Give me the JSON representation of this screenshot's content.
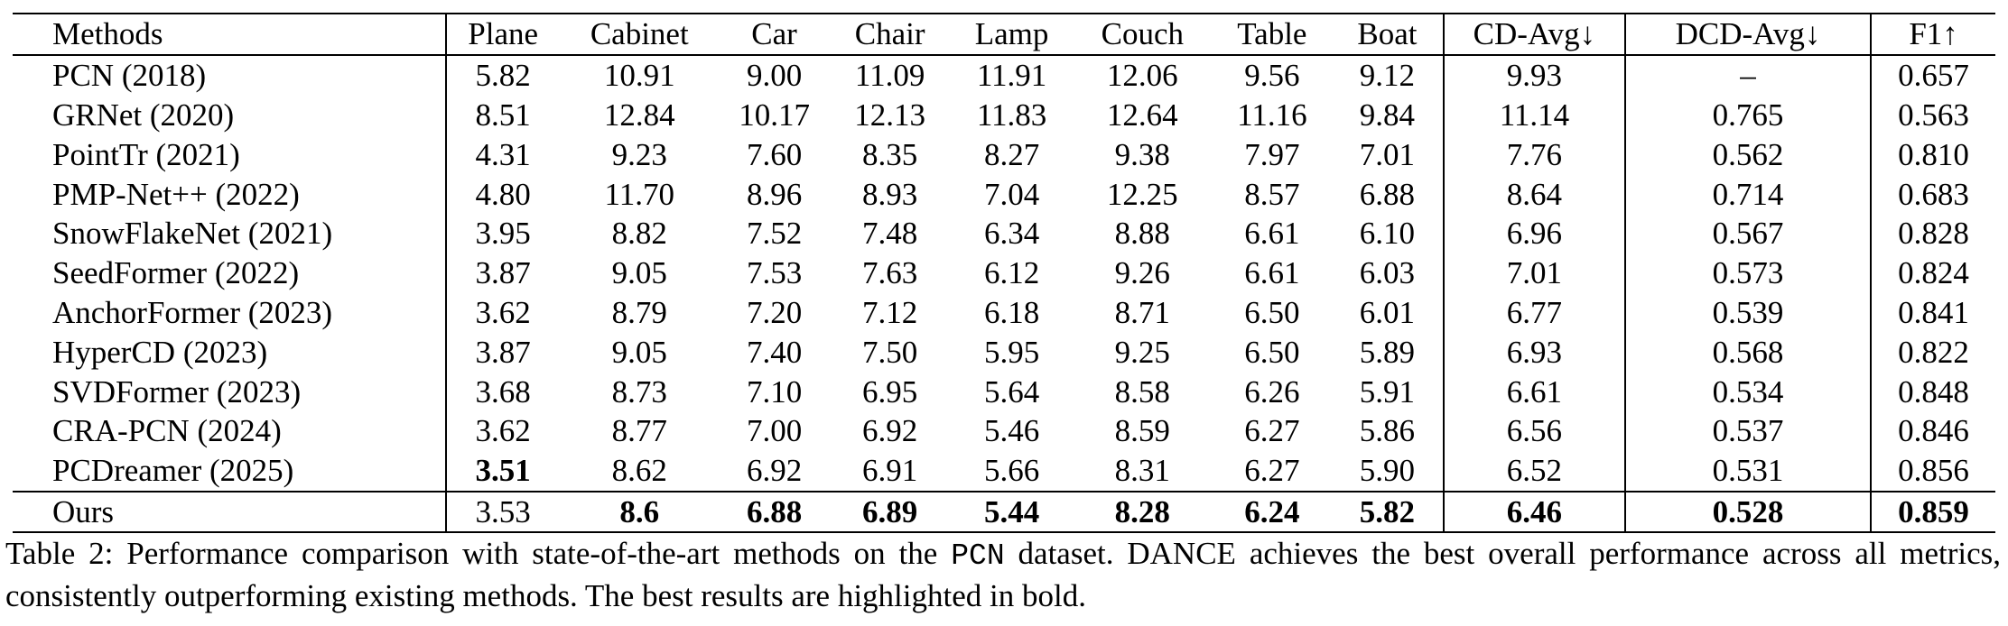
{
  "table": {
    "headers": [
      "Methods",
      "Plane",
      "Cabinet",
      "Car",
      "Chair",
      "Lamp",
      "Couch",
      "Table",
      "Boat",
      "CD-Avg↓",
      "DCD-Avg↓",
      "F1↑"
    ],
    "rows": [
      [
        "PCN (2018)",
        "5.82",
        "10.91",
        "9.00",
        "11.09",
        "11.91",
        "12.06",
        "9.56",
        "9.12",
        "9.93",
        "–",
        "0.657"
      ],
      [
        "GRNet (2020)",
        "8.51",
        "12.84",
        "10.17",
        "12.13",
        "11.83",
        "12.64",
        "11.16",
        "9.84",
        "11.14",
        "0.765",
        "0.563"
      ],
      [
        "PointTr (2021)",
        "4.31",
        "9.23",
        "7.60",
        "8.35",
        "8.27",
        "9.38",
        "7.97",
        "7.01",
        "7.76",
        "0.562",
        "0.810"
      ],
      [
        "PMP-Net++ (2022)",
        "4.80",
        "11.70",
        "8.96",
        "8.93",
        "7.04",
        "12.25",
        "8.57",
        "6.88",
        "8.64",
        "0.714",
        "0.683"
      ],
      [
        "SnowFlakeNet (2021)",
        "3.95",
        "8.82",
        "7.52",
        "7.48",
        "6.34",
        "8.88",
        "6.61",
        "6.10",
        "6.96",
        "0.567",
        "0.828"
      ],
      [
        "SeedFormer (2022)",
        "3.87",
        "9.05",
        "7.53",
        "7.63",
        "6.12",
        "9.26",
        "6.61",
        "6.03",
        "7.01",
        "0.573",
        "0.824"
      ],
      [
        "AnchorFormer (2023)",
        "3.62",
        "8.79",
        "7.20",
        "7.12",
        "6.18",
        "8.71",
        "6.50",
        "6.01",
        "6.77",
        "0.539",
        "0.841"
      ],
      [
        "HyperCD (2023)",
        "3.87",
        "9.05",
        "7.40",
        "7.50",
        "5.95",
        "9.25",
        "6.50",
        "5.89",
        "6.93",
        "0.568",
        "0.822"
      ],
      [
        "SVDFormer (2023)",
        "3.68",
        "8.73",
        "7.10",
        "6.95",
        "5.64",
        "8.58",
        "6.26",
        "5.91",
        "6.61",
        "0.534",
        "0.848"
      ],
      [
        "CRA-PCN (2024)",
        "3.62",
        "8.77",
        "7.00",
        "6.92",
        "5.46",
        "8.59",
        "6.27",
        "5.86",
        "6.56",
        "0.537",
        "0.846"
      ],
      [
        "PCDreamer (2025)",
        "3.51",
        "8.62",
        "6.92",
        "6.91",
        "5.66",
        "8.31",
        "6.27",
        "5.90",
        "6.52",
        "0.531",
        "0.856"
      ],
      [
        "Ours",
        "3.53",
        "8.6",
        "6.88",
        "6.89",
        "5.44",
        "8.28",
        "6.24",
        "5.82",
        "6.46",
        "0.528",
        "0.859"
      ]
    ],
    "bold_cells": [
      [
        10,
        1
      ],
      [
        11,
        2
      ],
      [
        11,
        3
      ],
      [
        11,
        4
      ],
      [
        11,
        5
      ],
      [
        11,
        6
      ],
      [
        11,
        7
      ],
      [
        11,
        8
      ],
      [
        11,
        9
      ],
      [
        11,
        10
      ],
      [
        11,
        11
      ]
    ]
  },
  "caption": {
    "label": "Table 2:",
    "text_before": "Performance comparison with state-of-the-art methods on the",
    "dataset_name": "PCN",
    "text_after": "dataset. DANCE achieves the best overall performance across all metrics, consistently outperforming existing methods. The best results are highlighted in bold."
  }
}
